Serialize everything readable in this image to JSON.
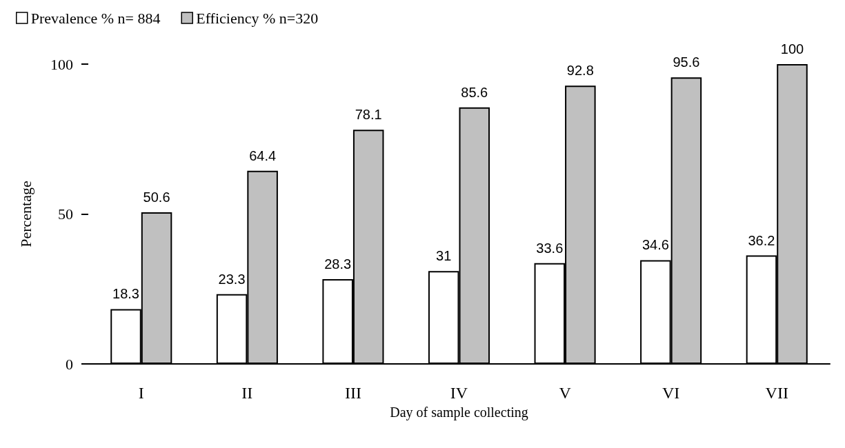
{
  "chart_data": {
    "type": "bar",
    "xlabel": "Day of sample collecting",
    "ylabel": "Percentage",
    "categories": [
      "I",
      "II",
      "III",
      "IV",
      "V",
      "VI",
      "VII"
    ],
    "series": [
      {
        "name": "Prevalence % n= 884",
        "color": "#ffffff",
        "values": [
          18.3,
          23.3,
          28.3,
          31,
          33.6,
          34.6,
          36.2
        ]
      },
      {
        "name": "Efficiency % n=320",
        "color": "#c0c0c0",
        "values": [
          50.6,
          64.4,
          78.1,
          85.6,
          92.8,
          95.6,
          100
        ]
      }
    ],
    "ylim": [
      0,
      100
    ],
    "yticks": [
      0,
      50,
      100
    ],
    "grid": false,
    "legend": "top left",
    "data_labels": true
  }
}
